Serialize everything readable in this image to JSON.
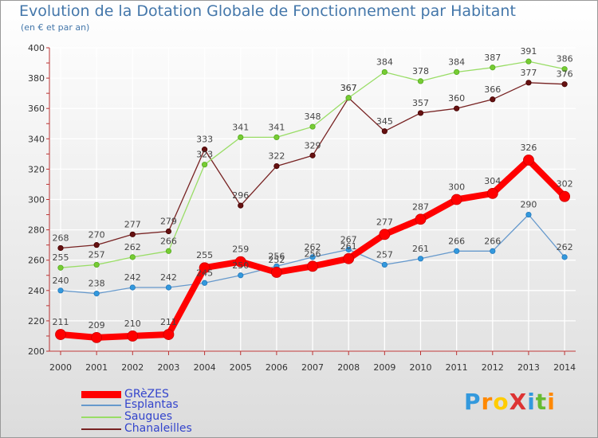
{
  "chart_data": {
    "type": "line",
    "title": "Evolution de la Dotation Globale de Fonctionnement par Habitant",
    "subtitle": "(en € et par an)",
    "x": [
      "2000",
      "2001",
      "2002",
      "2003",
      "2004",
      "2005",
      "2006",
      "2007",
      "2008",
      "2009",
      "2010",
      "2011",
      "2012",
      "2013",
      "2014"
    ],
    "ylim": [
      200,
      400
    ],
    "yticks": [
      200,
      220,
      240,
      260,
      280,
      300,
      320,
      340,
      360,
      380,
      400
    ],
    "grid": true,
    "legend_position": "bottom-left",
    "series": [
      {
        "name": "GRèZES",
        "color": "#ff0000",
        "values": [
          211,
          209,
          210,
          211,
          255,
          259,
          252,
          256,
          261,
          277,
          287,
          300,
          304,
          326,
          302
        ]
      },
      {
        "name": "Esplantas",
        "color": "#6699cc",
        "values": [
          240,
          238,
          242,
          242,
          245,
          250,
          256,
          262,
          267,
          257,
          261,
          266,
          266,
          290,
          262
        ]
      },
      {
        "name": "Saugues",
        "color": "#99dd66",
        "values": [
          255,
          257,
          262,
          266,
          323,
          341,
          341,
          348,
          367,
          384,
          378,
          384,
          387,
          391,
          386
        ]
      },
      {
        "name": "Chanaleilles",
        "color": "#772222",
        "values": [
          268,
          270,
          277,
          279,
          333,
          296,
          322,
          329,
          367,
          345,
          357,
          360,
          366,
          377,
          376
        ]
      }
    ]
  },
  "logo": {
    "text": "ProXiti",
    "letters": [
      "P",
      "r",
      "o",
      "X",
      "i",
      "t",
      "i"
    ],
    "colors": [
      "#3399dd",
      "#ff8800",
      "#ffcc00",
      "#dd3333",
      "#3399dd",
      "#66bb33",
      "#ff8800"
    ]
  }
}
